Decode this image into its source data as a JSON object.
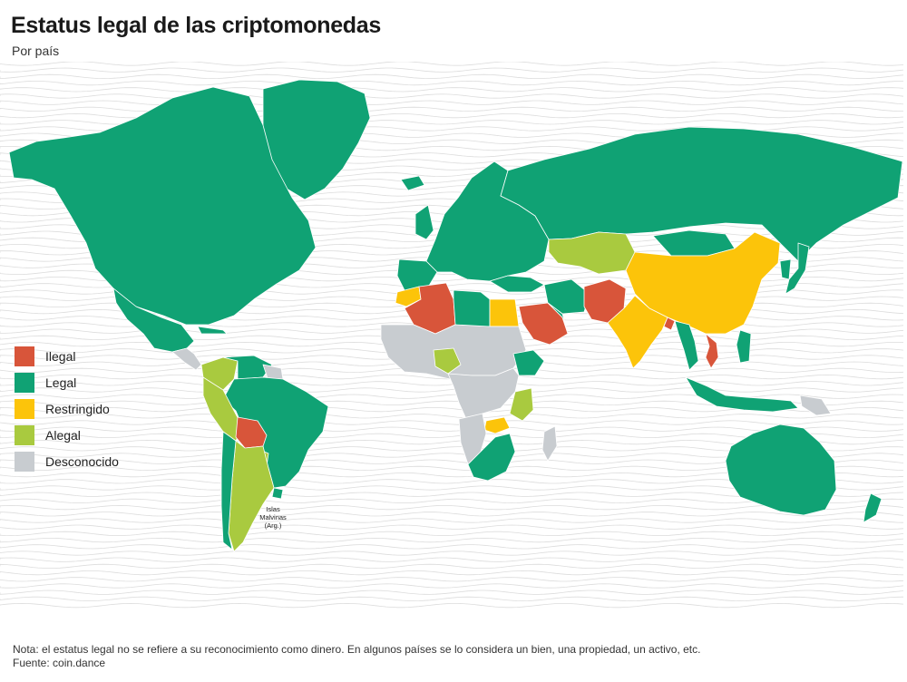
{
  "title": "Estatus legal de las criptomonedas",
  "subtitle": "Por país",
  "colors": {
    "ilegal": "#d8553a",
    "legal": "#10a274",
    "restringido": "#fcc40a",
    "alegal": "#a9ca3f",
    "desconocido": "#c8ccd0",
    "waves": "#dcdcdc"
  },
  "legend": [
    {
      "label": "Ilegal",
      "color": "#d8553a"
    },
    {
      "label": "Legal",
      "color": "#10a274"
    },
    {
      "label": "Restringido",
      "color": "#fcc40a"
    },
    {
      "label": "Alegal",
      "color": "#a9ca3f"
    },
    {
      "label": "Desconocido",
      "color": "#c8ccd0"
    }
  ],
  "map_label": {
    "line1": "Islas",
    "line2": "Malvinas",
    "line3": "(Arg.)"
  },
  "note": "Nota: el estatus legal no se refiere a su reconocimiento como dinero. En algunos países se lo considera un bien, una propiedad, un activo, etc.",
  "source": "Fuente: coin.dance"
}
